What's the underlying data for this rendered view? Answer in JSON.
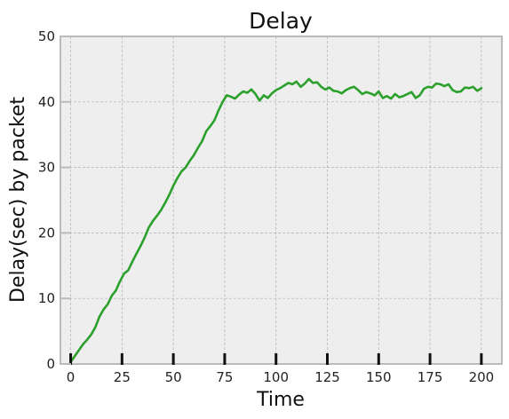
{
  "chart_data": {
    "type": "line",
    "title": "Delay",
    "xlabel": "Time",
    "ylabel": "Delay(sec) by packet",
    "xlim": [
      -5,
      210
    ],
    "ylim": [
      0,
      50
    ],
    "xticks": [
      0,
      25,
      50,
      75,
      100,
      125,
      150,
      175,
      200
    ],
    "yticks": [
      0,
      10,
      20,
      30,
      40,
      50
    ],
    "grid": true,
    "legend": "none",
    "colors": {
      "line": "#2ca02c",
      "plot_bg": "#eeeeee",
      "grid": "#b0b0b0",
      "frame": "#bbbbbb"
    },
    "series": [
      {
        "x": [
          0,
          2,
          4,
          6,
          8,
          10,
          12,
          14,
          16,
          18,
          20,
          22,
          24,
          26,
          28,
          30,
          32,
          34,
          36,
          38,
          40,
          42,
          44,
          46,
          48,
          50,
          52,
          54,
          56,
          58,
          60,
          62,
          64,
          66,
          68,
          70,
          72,
          74,
          76,
          78,
          80,
          82,
          84,
          86,
          88,
          90,
          92,
          94,
          96,
          98,
          100,
          102,
          104,
          106,
          108,
          110,
          112,
          114,
          116,
          118,
          120,
          122,
          124,
          126,
          128,
          130,
          132,
          134,
          136,
          138,
          140,
          142,
          144,
          146,
          148,
          150,
          152,
          154,
          156,
          158,
          160,
          162,
          164,
          166,
          168,
          170,
          172,
          174,
          176,
          178,
          180,
          182,
          184,
          186,
          188,
          190,
          192,
          194,
          196,
          198,
          200
        ],
        "y": [
          0.3,
          1.2,
          2.1,
          3.0,
          3.7,
          4.5,
          5.6,
          7.2,
          8.3,
          9.1,
          10.4,
          11.2,
          12.6,
          13.8,
          14.3,
          15.6,
          16.8,
          18.0,
          19.3,
          20.8,
          21.8,
          22.6,
          23.5,
          24.6,
          25.8,
          27.2,
          28.4,
          29.4,
          30.0,
          31.0,
          31.9,
          33.0,
          34.0,
          35.5,
          36.3,
          37.2,
          38.7,
          40.0,
          41.0,
          40.8,
          40.5,
          41.1,
          41.6,
          41.4,
          41.9,
          41.2,
          40.2,
          41.0,
          40.6,
          41.3,
          41.8,
          42.1,
          42.5,
          42.9,
          42.7,
          43.1,
          42.3,
          42.8,
          43.5,
          42.9,
          43.0,
          42.3,
          41.9,
          42.2,
          41.7,
          41.6,
          41.3,
          41.8,
          42.1,
          42.3,
          41.8,
          41.2,
          41.5,
          41.3,
          41.0,
          41.6,
          40.6,
          40.9,
          40.5,
          41.2,
          40.7,
          40.9,
          41.2,
          41.5,
          40.6,
          41.0,
          42.0,
          42.3,
          42.2,
          42.8,
          42.7,
          42.4,
          42.7,
          41.8,
          41.5,
          41.6,
          42.2,
          42.1,
          42.3,
          41.7,
          42.1
        ]
      }
    ]
  }
}
